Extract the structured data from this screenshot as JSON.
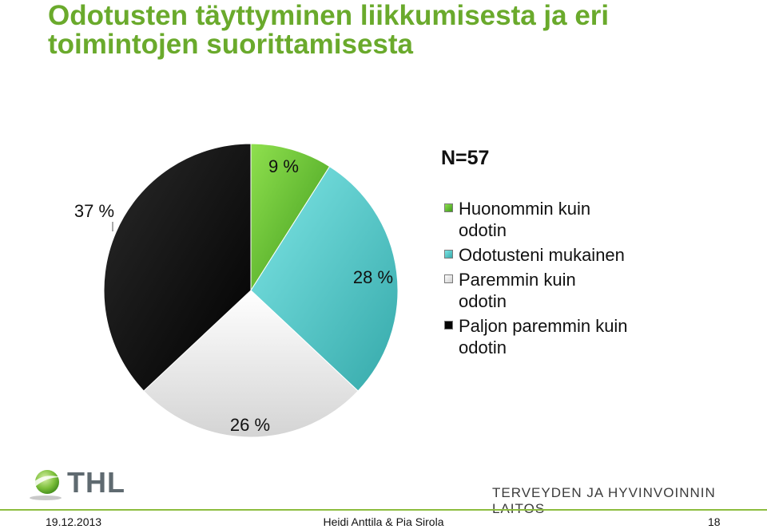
{
  "title": "Odotusten täyttyminen liikkumisesta ja eri toimintojen suorittamisesta",
  "n_label": "N=57",
  "chart_data": {
    "type": "pie",
    "categories": [
      "Huonommin kuin odotin",
      "Odotusteni mukainen",
      "Paremmin kuin odotin",
      "Paljon paremmin kuin odotin"
    ],
    "values": [
      9,
      28,
      26,
      37
    ],
    "value_labels": [
      "9 %",
      "28 %",
      "26 %",
      "37 %"
    ],
    "colors": [
      "#6cc434",
      "#52cccc",
      "#efefef",
      "#050505"
    ],
    "legend_position": "right"
  },
  "logo": {
    "text": "THL",
    "icon": "globe-icon"
  },
  "institute": "TERVEYDEN JA HYVINVOINNIN LAITOS",
  "footer": {
    "date": "19.12.2013",
    "authors": "Heidi Anttila & Pia Sirola",
    "page": "18"
  }
}
